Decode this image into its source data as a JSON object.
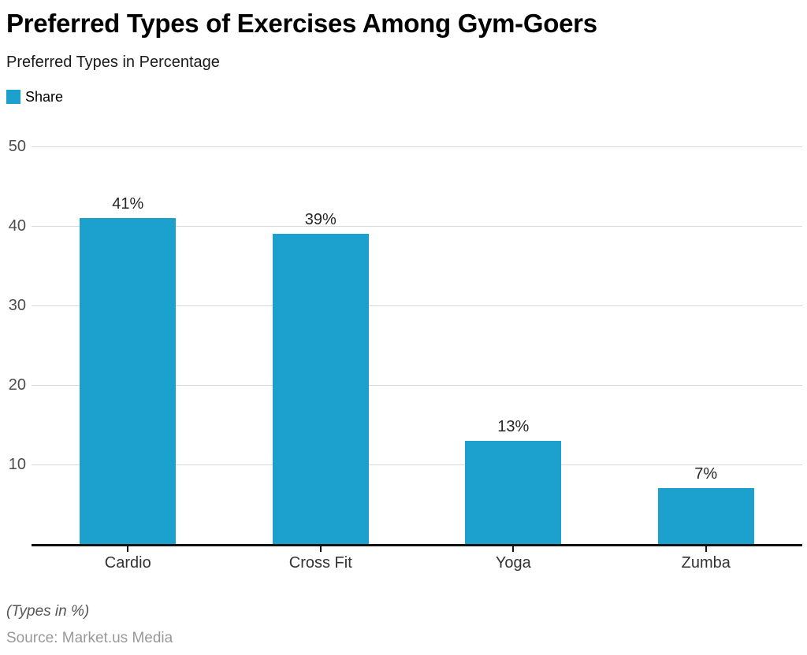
{
  "header": {
    "title": "Preferred Types of Exercises Among Gym-Goers",
    "subtitle": "Preferred Types in Percentage"
  },
  "legend": {
    "label": "Share",
    "swatch_color": "#1CA1CE"
  },
  "chart_data": {
    "type": "bar",
    "title": "Preferred Types of Exercises Among Gym-Goers",
    "subtitle": "Preferred Types in Percentage",
    "series_name": "Share",
    "categories": [
      "Cardio",
      "Cross Fit",
      "Yoga",
      "Zumba"
    ],
    "values": [
      41,
      39,
      13,
      7
    ],
    "value_labels": [
      "41%",
      "39%",
      "13%",
      "7%"
    ],
    "xlabel": "",
    "ylabel": "",
    "ylim": [
      0,
      50
    ],
    "yticks": [
      10,
      20,
      30,
      40,
      50
    ],
    "grid": true,
    "legend_position": "top-left",
    "bar_color": "#1CA1CE",
    "gridline_color": "#d9d9d9",
    "axis_color": "#111111"
  },
  "footer": {
    "note": "(Types in %)",
    "source": "Source: Market.us Media"
  }
}
